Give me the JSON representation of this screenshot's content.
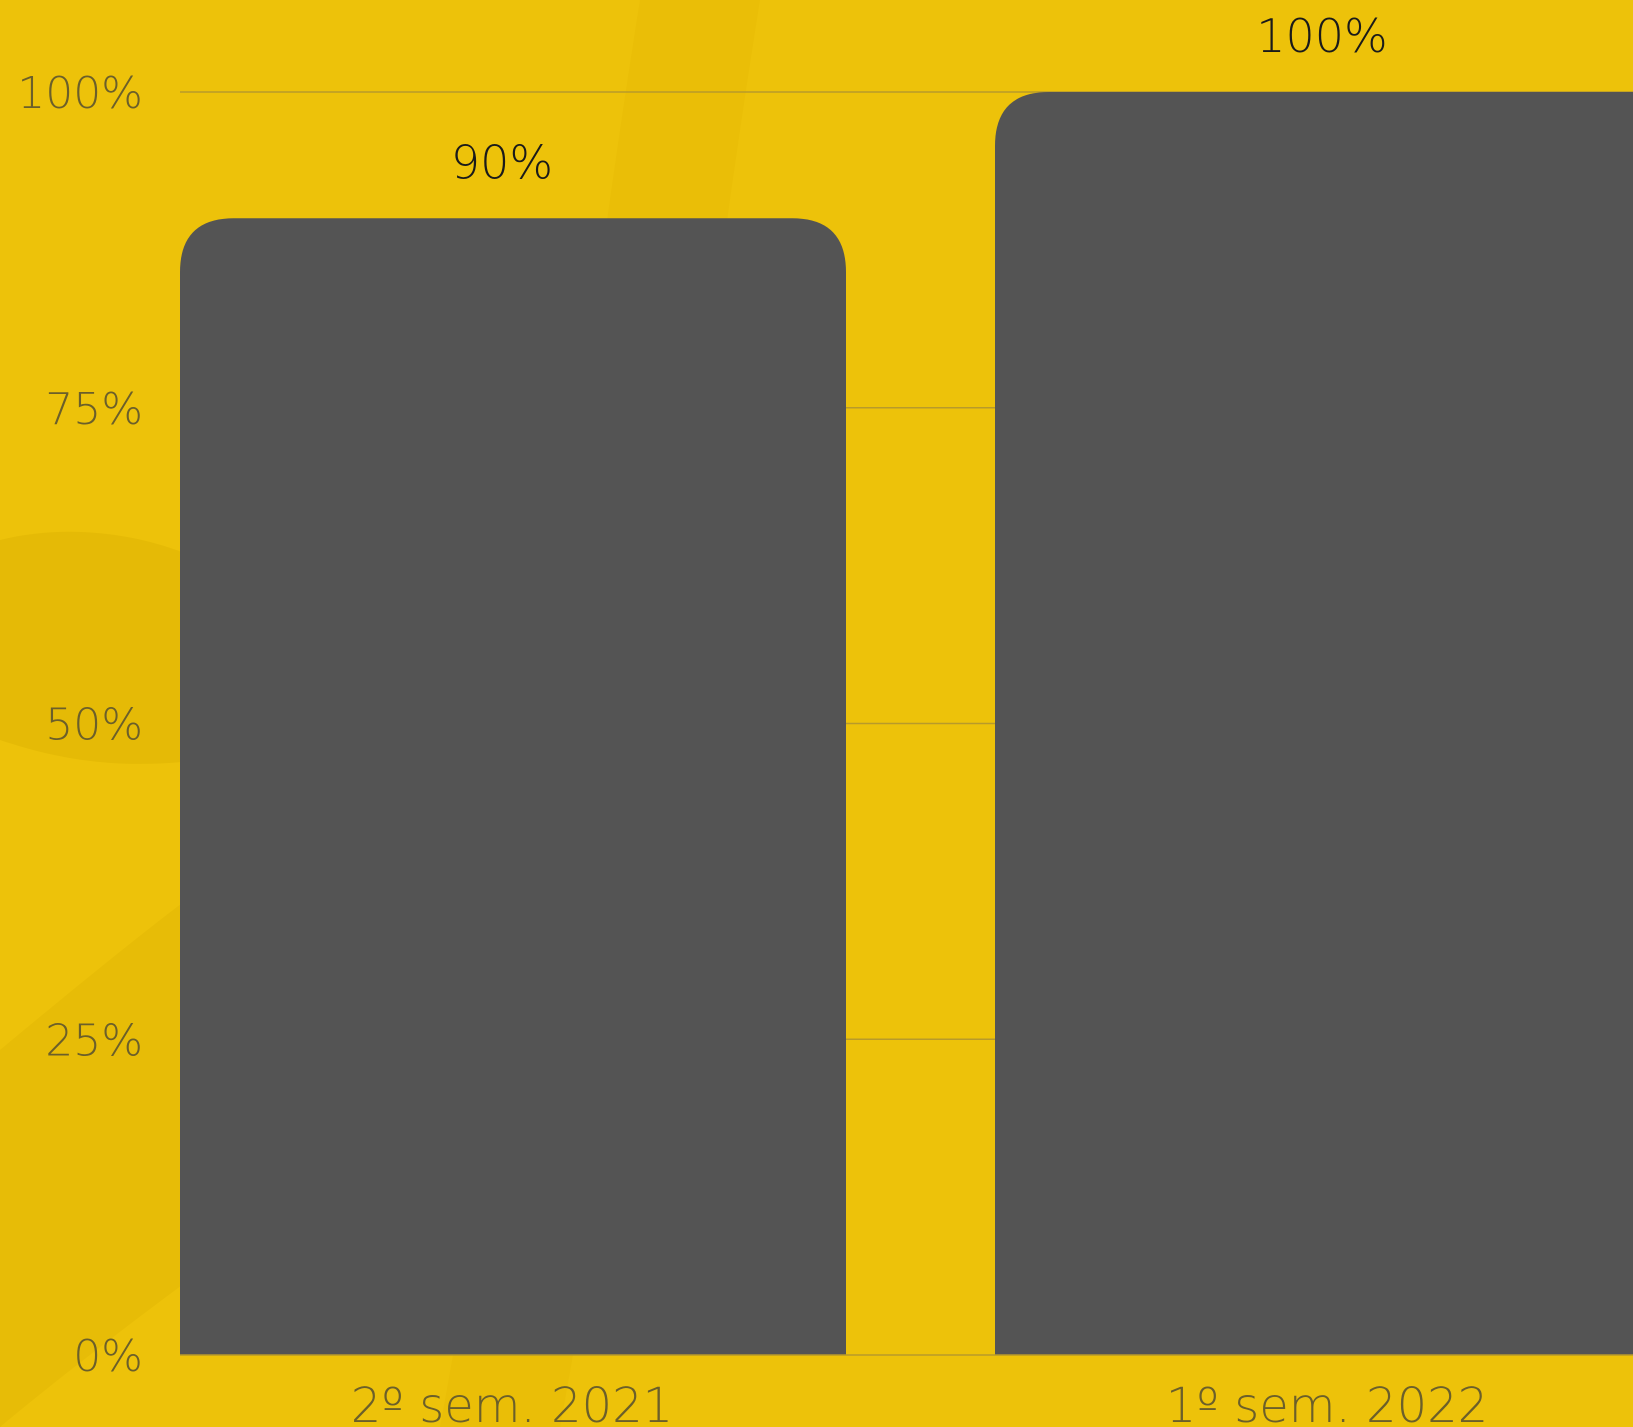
{
  "colors": {
    "background": "#EDC20A",
    "bar": "#545454",
    "gridline": "#b89a2a",
    "axis_text": "#6b5f2a",
    "data_label_text": "#1a1a1a"
  },
  "chart_data": {
    "type": "bar",
    "categories": [
      "2º sem. 2021",
      "1º sem. 2022"
    ],
    "values": [
      90,
      100
    ],
    "data_labels": [
      "90%",
      "100%"
    ],
    "title": "",
    "xlabel": "",
    "ylabel": "",
    "ylim": [
      0,
      100
    ],
    "yticks": [
      0,
      25,
      50,
      75,
      100
    ],
    "ytick_labels": [
      "0%",
      "25%",
      "50%",
      "75%",
      "100%"
    ],
    "grid": true,
    "legend": "none"
  }
}
